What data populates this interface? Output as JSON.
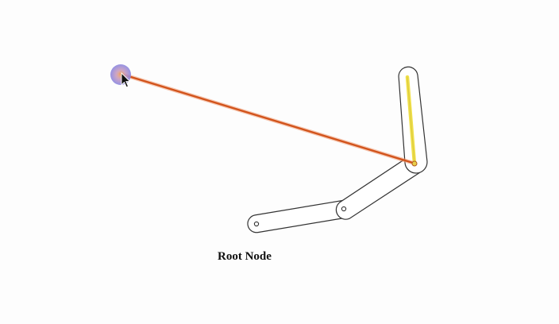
{
  "root_label": "Root Node",
  "colors": {
    "background": "#fdfdfd",
    "bone_outline": "#333333",
    "bone_fill": "#ffffff",
    "target_line": "#d2541c",
    "target_line_glow": "#f2a07a",
    "highlight_bone": "#f0e04a",
    "target_handle": "#8a86e0",
    "target_handle_center": "#f4a35a"
  },
  "icons": {
    "cursor": "mouse-pointer-icon",
    "target": "ik-target-handle-icon"
  }
}
